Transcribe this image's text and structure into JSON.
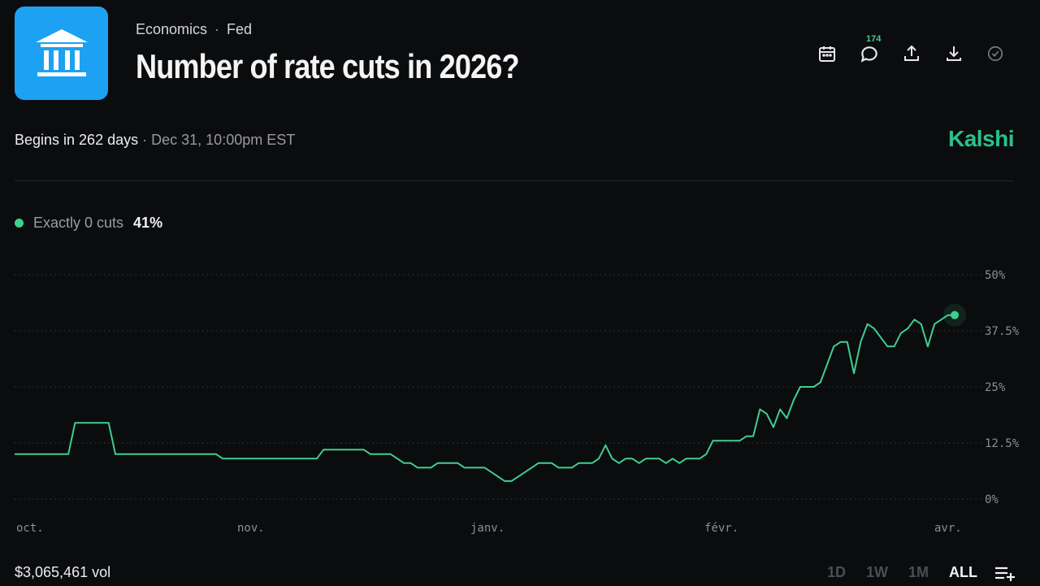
{
  "header": {
    "category": "Economics",
    "subcategory": "Fed",
    "title": "Number of rate cuts in 2026?",
    "logo_icon": "bank-building-icon",
    "logo_bg": "#1da1f2"
  },
  "actions": {
    "icons": [
      "calendar-icon",
      "comment-icon",
      "share-icon",
      "download-icon",
      "check-circle-icon"
    ],
    "comment_count": "174"
  },
  "schedule": {
    "begins": "Begins in 262 days",
    "separator": "·",
    "date": "Dec 31, 10:00pm EST"
  },
  "brand": "Kalshi",
  "legend": {
    "name": "Exactly 0 cuts",
    "value": "41%",
    "color": "#3ecf8e"
  },
  "chart_data": {
    "type": "line",
    "x_labels": [
      "oct.",
      "nov.",
      "janv.",
      "févr.",
      "avr."
    ],
    "y_ticks": [
      "50%",
      "37.5%",
      "25%",
      "12.5%",
      "0%"
    ],
    "ylim": [
      0,
      50
    ],
    "grid": true,
    "series": [
      {
        "name": "Exactly 0 cuts",
        "color": "#3ecf8e",
        "values": [
          10,
          10,
          10,
          10,
          10,
          10,
          10,
          10,
          10,
          17,
          17,
          17,
          17,
          17,
          17,
          10,
          10,
          10,
          10,
          10,
          10,
          10,
          10,
          10,
          10,
          10,
          10,
          10,
          10,
          10,
          10,
          9,
          9,
          9,
          9,
          9,
          9,
          9,
          9,
          9,
          9,
          9,
          9,
          9,
          9,
          9,
          11,
          11,
          11,
          11,
          11,
          11,
          11,
          10,
          10,
          10,
          10,
          9,
          8,
          8,
          7,
          7,
          7,
          8,
          8,
          8,
          8,
          7,
          7,
          7,
          7,
          6,
          5,
          4,
          4,
          5,
          6,
          7,
          8,
          8,
          8,
          7,
          7,
          7,
          8,
          8,
          8,
          9,
          12,
          9,
          8,
          9,
          9,
          8,
          9,
          9,
          9,
          8,
          9,
          8,
          9,
          9,
          9,
          10,
          13,
          13,
          13,
          13,
          13,
          14,
          14,
          20,
          19,
          16,
          20,
          18,
          22,
          25,
          25,
          25,
          26,
          30,
          34,
          35,
          35,
          28,
          35,
          39,
          38,
          36,
          34,
          34,
          37,
          38,
          40,
          39,
          34,
          39,
          40,
          41,
          41
        ]
      }
    ],
    "last_value": 41
  },
  "footer": {
    "volume": "$3,065,461 vol",
    "ranges": [
      "1D",
      "1W",
      "1M",
      "ALL"
    ],
    "active_range": "ALL"
  }
}
